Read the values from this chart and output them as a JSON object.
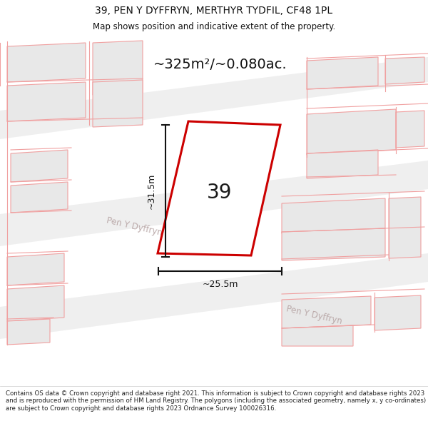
{
  "title_line1": "39, PEN Y DYFFRYN, MERTHYR TYDFIL, CF48 1PL",
  "title_line2": "Map shows position and indicative extent of the property.",
  "area_text": "~325m²/~0.080ac.",
  "label_39": "39",
  "dim_vertical": "~31.5m",
  "dim_horizontal": "~25.5m",
  "street_label1": "Pen Y Dyffryn",
  "street_label2": "Pen Y Dyffryn",
  "footer": "Contains OS data © Crown copyright and database right 2021. This information is subject to Crown copyright and database rights 2023 and is reproduced with the permission of HM Land Registry. The polygons (including the associated geometry, namely x, y co-ordinates) are subject to Crown copyright and database rights 2023 Ordnance Survey 100026316.",
  "map_bg": "#ffffff",
  "building_fill": "#e8e8e8",
  "building_outline": "#f0a0a0",
  "property_outline": "#cc0000",
  "property_fill": "#ffffff",
  "road_fill": "#efefef",
  "road_outline": "#f0a0a0",
  "text_color": "#111111",
  "street_text_color": "#bbaaaa",
  "dim_color": "#111111"
}
